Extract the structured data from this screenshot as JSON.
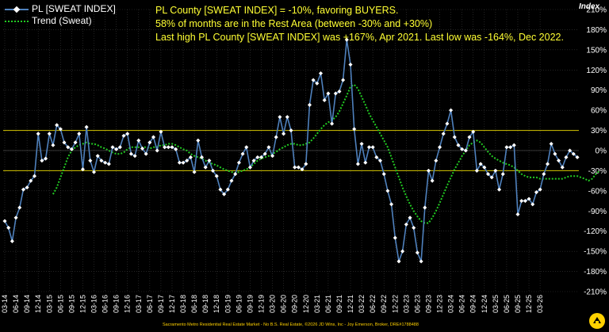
{
  "chart_data": {
    "type": "line",
    "ylabel": "Index",
    "ylim": [
      -210,
      210
    ],
    "yticks": [
      -210,
      -180,
      -150,
      -120,
      -90,
      -60,
      -30,
      0,
      30,
      60,
      90,
      120,
      150,
      180,
      210
    ],
    "ytick_labels": [
      "-210%",
      "-180%",
      "-150%",
      "-120%",
      "-90%",
      "-60%",
      "-30%",
      "0%",
      "30%",
      "60%",
      "90%",
      "120%",
      "150%",
      "180%",
      "210%"
    ],
    "reference_lines": [
      30,
      -30
    ],
    "x_tick_labels": [
      "03-14",
      "06-14",
      "09-14",
      "12-14",
      "03-15",
      "06-15",
      "09-15",
      "12-15",
      "03-16",
      "06-16",
      "09-16",
      "12-16",
      "03-17",
      "06-17",
      "09-17",
      "12-17",
      "03-18",
      "06-18",
      "09-18",
      "12-18",
      "03-19",
      "06-19",
      "09-19",
      "12-19",
      "03-20",
      "06-20",
      "09-20",
      "12-20",
      "03-21",
      "06-21",
      "09-21",
      "12-21",
      "03-22",
      "06-22",
      "09-22",
      "12-22",
      "03-23",
      "06-23",
      "09-23",
      "12-23",
      "03-24",
      "06-24",
      "09-24",
      "12-24",
      "03-25",
      "06-25",
      "09-25",
      "12-25",
      "03-26"
    ],
    "series": [
      {
        "name": "PL [SWEAT INDEX]",
        "values": [
          -105,
          -115,
          -135,
          -100,
          -85,
          -58,
          -55,
          -45,
          -38,
          25,
          -15,
          -12,
          25,
          8,
          38,
          32,
          12,
          5,
          2,
          12,
          25,
          -28,
          35,
          -15,
          -32,
          -8,
          -15,
          -18,
          -20,
          5,
          2,
          5,
          22,
          25,
          -5,
          -8,
          15,
          3,
          -5,
          12,
          20,
          0,
          28,
          5,
          5,
          5,
          2,
          -18,
          -18,
          -15,
          -10,
          -32,
          15,
          -10,
          -25,
          -15,
          -30,
          -38,
          -58,
          -65,
          -58,
          -45,
          -35,
          -18,
          -5,
          5,
          -25,
          -15,
          -10,
          -10,
          -5,
          5,
          -8,
          20,
          50,
          25,
          50,
          30,
          -25,
          -25,
          -28,
          -20,
          68,
          105,
          100,
          115,
          75,
          85,
          40,
          85,
          88,
          105,
          165,
          128,
          32,
          -20,
          10,
          -18,
          5,
          5,
          -10,
          -15,
          -35,
          -60,
          -80,
          -130,
          -165,
          -150,
          -110,
          -100,
          -115,
          -152,
          -165,
          -85,
          -30,
          -45,
          -15,
          5,
          25,
          40,
          60,
          20,
          8,
          2,
          0,
          20,
          28,
          -30,
          -20,
          -25,
          -35,
          -40,
          -30,
          -58,
          -35,
          5,
          5,
          8,
          -95,
          -75,
          -75,
          -72,
          -80,
          -62,
          -58,
          -35,
          -20,
          10,
          -5,
          -15,
          -25,
          -10,
          0,
          -5,
          -10
        ]
      },
      {
        "name": "Trend (Sweat)",
        "values": [
          null,
          null,
          null,
          null,
          null,
          null,
          null,
          null,
          null,
          null,
          null,
          null,
          null,
          -65,
          -55,
          -40,
          -25,
          -10,
          0,
          5,
          8,
          10,
          12,
          10,
          10,
          8,
          5,
          3,
          0,
          -3,
          -5,
          -5,
          -3,
          2,
          5,
          5,
          5,
          5,
          5,
          3,
          5,
          5,
          8,
          8,
          10,
          10,
          8,
          5,
          2,
          0,
          -5,
          -8,
          -10,
          -12,
          -15,
          -18,
          -20,
          -22,
          -25,
          -28,
          -30,
          -32,
          -33,
          -32,
          -30,
          -28,
          -25,
          -20,
          -15,
          -12,
          -10,
          -8,
          -5,
          -2,
          2,
          5,
          8,
          10,
          10,
          8,
          8,
          10,
          12,
          18,
          25,
          32,
          38,
          42,
          45,
          50,
          58,
          70,
          82,
          95,
          98,
          92,
          80,
          68,
          55,
          45,
          35,
          25,
          15,
          5,
          -10,
          -25,
          -40,
          -55,
          -68,
          -80,
          -90,
          -98,
          -105,
          -108,
          -108,
          -100,
          -90,
          -78,
          -65,
          -52,
          -40,
          -28,
          -18,
          -8,
          0,
          8,
          12,
          15,
          12,
          5,
          -2,
          -8,
          -12,
          -15,
          -18,
          -20,
          -22,
          -25,
          -30,
          -35,
          -38,
          -40,
          -40,
          -40,
          -42,
          -42,
          -42,
          -42,
          -42,
          -42,
          -42,
          -40,
          -38,
          -38,
          -38,
          -40,
          -42,
          -45,
          -42,
          -35,
          -30
        ]
      }
    ]
  },
  "legend": {
    "series1": "PL [SWEAT INDEX]",
    "series2": "Trend (Sweat)"
  },
  "notes": {
    "line1": "PL County [SWEAT INDEX] = -10%, favoring BUYERS.",
    "line2": "58% of months are in the Rest Area (between -30% and +30%)",
    "line3": "Last high PL County [SWEAT INDEX] was +167%, Apr 2021. Last low was -164%, Dec 2022."
  },
  "footer": "Sacramento Metro Residential Real Estate Market - No B.S. Real Estate, ©2026 JD Wins, Inc - Joy Emerson, Broker, DRE#1788488",
  "colors": {
    "series1": "#4f81bd",
    "series2": "#22cc22",
    "reference": "#d4c400",
    "note_text": "#ffff33"
  }
}
